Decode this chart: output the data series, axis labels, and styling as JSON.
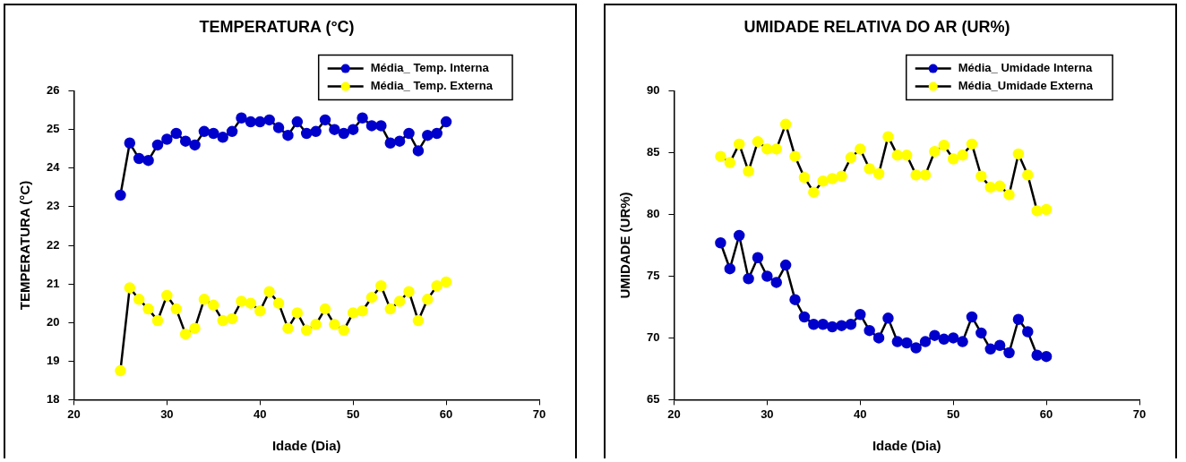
{
  "chart_data": [
    {
      "type": "line",
      "title": "TEMPERATURA (°C)",
      "xlabel": "Idade (Dia)",
      "ylabel": "TEMPERATURA (°C)",
      "x": [
        25,
        26,
        27,
        28,
        29,
        30,
        31,
        32,
        33,
        34,
        35,
        36,
        37,
        38,
        39,
        40,
        41,
        42,
        43,
        44,
        45,
        46,
        47,
        48,
        49,
        50,
        51,
        52,
        53,
        54,
        55,
        56,
        57,
        58,
        59,
        60
      ],
      "series": [
        {
          "name": "Média_ Temp. Interna",
          "color": "#0000cc",
          "values": [
            23.3,
            24.65,
            24.25,
            24.2,
            24.6,
            24.75,
            24.9,
            24.7,
            24.6,
            24.95,
            24.9,
            24.8,
            24.95,
            25.3,
            25.2,
            25.2,
            25.25,
            25.05,
            24.85,
            25.2,
            24.9,
            24.95,
            25.25,
            25.0,
            24.9,
            25.0,
            25.3,
            25.1,
            25.1,
            24.65,
            24.7,
            24.9,
            24.45,
            24.85,
            24.9,
            25.2
          ]
        },
        {
          "name": "Média_ Temp. Externa",
          "color": "#ffff00",
          "values": [
            18.75,
            20.9,
            20.6,
            20.35,
            20.05,
            20.7,
            20.35,
            19.7,
            19.85,
            20.6,
            20.45,
            20.05,
            20.1,
            20.55,
            20.5,
            20.3,
            20.8,
            20.5,
            19.85,
            20.25,
            19.8,
            19.95,
            20.35,
            19.95,
            19.8,
            20.25,
            20.3,
            20.65,
            20.95,
            20.35,
            20.55,
            20.8,
            20.05,
            20.6,
            20.95,
            21.05
          ]
        }
      ],
      "xlim": [
        20,
        70
      ],
      "xticks": [
        20,
        30,
        40,
        50,
        60,
        70
      ],
      "ylim": [
        18,
        26
      ],
      "yticks": [
        18,
        19,
        20,
        21,
        22,
        23,
        24,
        25,
        26
      ],
      "grid": false,
      "legend": "top right",
      "marker": "circle",
      "line_style": "solid"
    },
    {
      "type": "line",
      "title": "UMIDADE RELATIVA DO AR (UR%)",
      "xlabel": "Idade (Dia)",
      "ylabel": "UMIDADE (UR%)",
      "x": [
        25,
        26,
        27,
        28,
        29,
        30,
        31,
        32,
        33,
        34,
        35,
        36,
        37,
        38,
        39,
        40,
        41,
        42,
        43,
        44,
        45,
        46,
        47,
        48,
        49,
        50,
        51,
        52,
        53,
        54,
        55,
        56,
        57,
        58,
        59,
        60
      ],
      "series": [
        {
          "name": "Média_ Umidade Interna",
          "color": "#0000cc",
          "values": [
            77.7,
            75.6,
            78.3,
            74.8,
            76.5,
            75.0,
            74.5,
            75.9,
            73.1,
            71.7,
            71.1,
            71.1,
            70.9,
            71.0,
            71.1,
            71.9,
            70.6,
            70.0,
            71.6,
            69.7,
            69.6,
            69.2,
            69.7,
            70.2,
            69.9,
            70.0,
            69.7,
            71.7,
            70.4,
            69.1,
            69.4,
            68.8,
            71.5,
            70.5,
            68.6,
            68.5
          ]
        },
        {
          "name": "Média_Umidade Externa",
          "color": "#ffff00",
          "values": [
            84.7,
            84.2,
            85.7,
            83.5,
            85.9,
            85.3,
            85.3,
            87.3,
            84.7,
            83.0,
            81.8,
            82.7,
            82.9,
            83.1,
            84.6,
            85.3,
            83.7,
            83.3,
            86.3,
            84.8,
            84.8,
            83.2,
            83.2,
            85.1,
            85.6,
            84.5,
            84.8,
            85.7,
            83.1,
            82.2,
            82.3,
            81.6,
            84.9,
            83.2,
            80.3,
            80.4
          ]
        }
      ],
      "xlim": [
        20,
        70
      ],
      "xticks": [
        20,
        30,
        40,
        50,
        60,
        70
      ],
      "ylim": [
        65,
        90
      ],
      "yticks": [
        65,
        70,
        75,
        80,
        85,
        90
      ],
      "grid": false,
      "legend": "top right",
      "marker": "circle",
      "line_style": "solid"
    }
  ]
}
